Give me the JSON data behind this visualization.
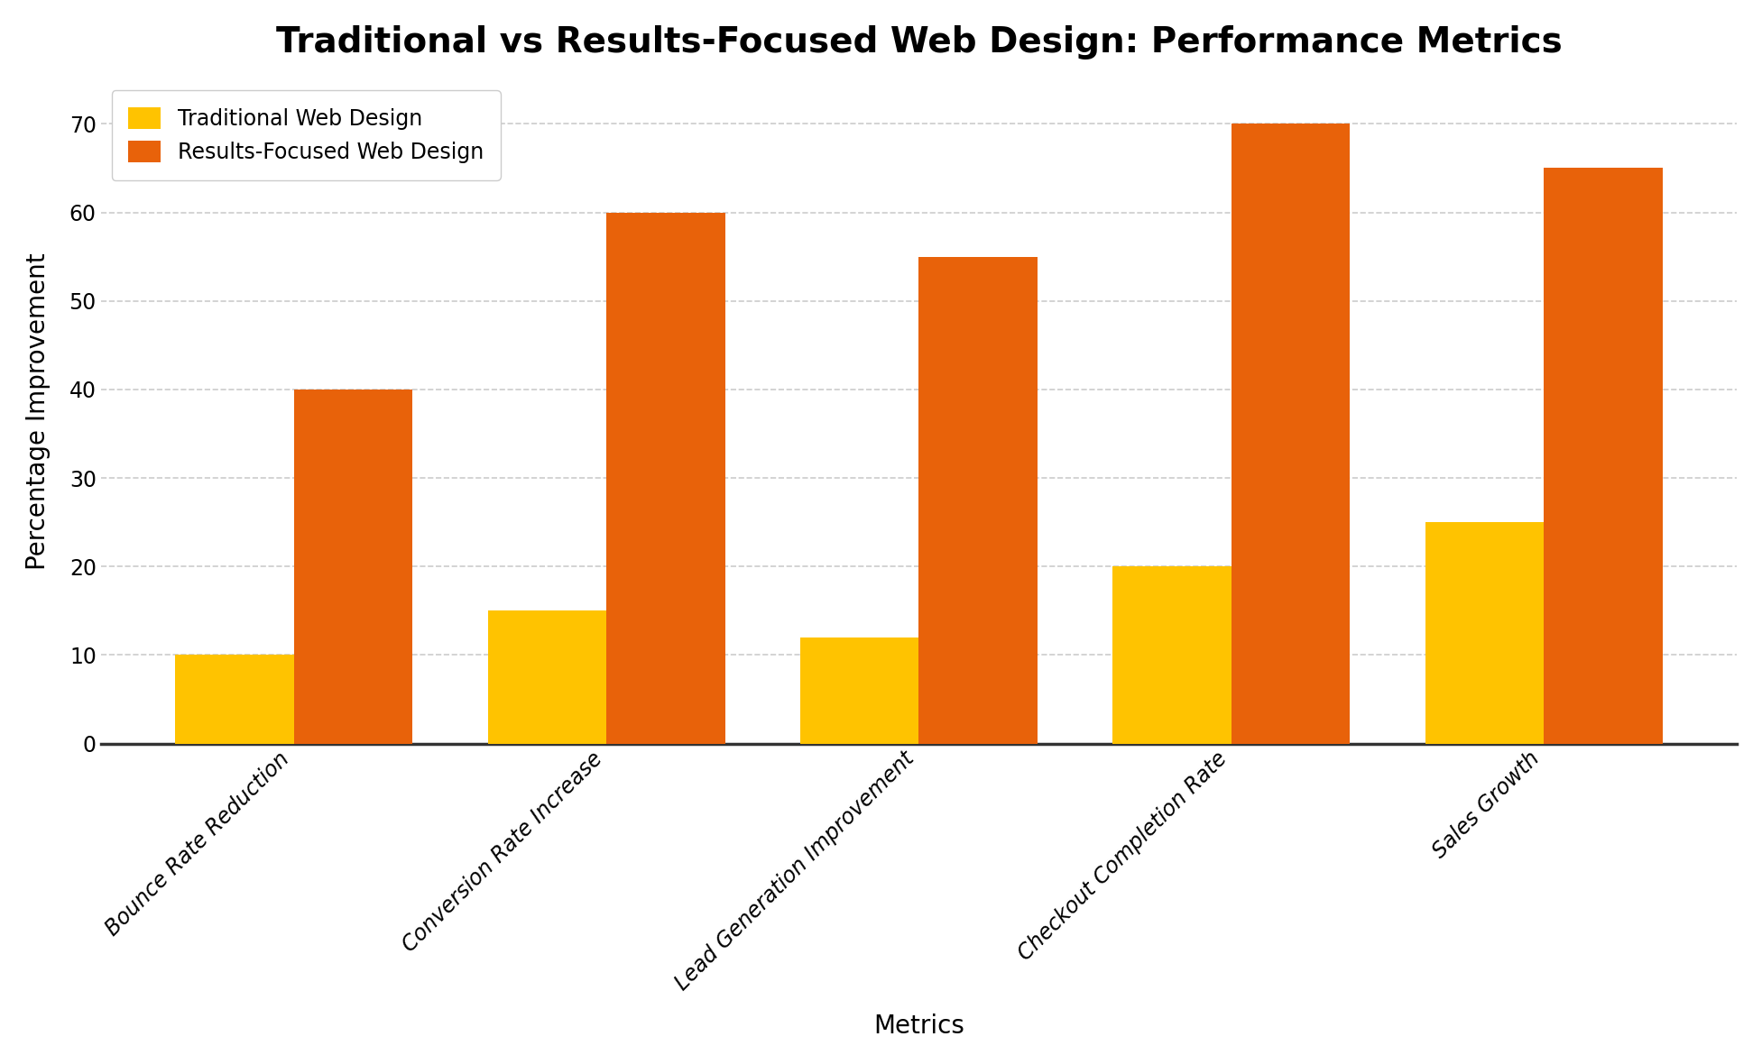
{
  "title": "Traditional vs Results-Focused Web Design: Performance Metrics",
  "xlabel": "Metrics",
  "ylabel": "Percentage Improvement",
  "categories": [
    "Bounce Rate Reduction",
    "Conversion Rate Increase",
    "Lead Generation Improvement",
    "Checkout Completion Rate",
    "Sales Growth"
  ],
  "series": [
    {
      "label": "Traditional Web Design",
      "values": [
        10,
        15,
        12,
        20,
        25
      ],
      "color": "#FFC300"
    },
    {
      "label": "Results-Focused Web Design",
      "values": [
        40,
        60,
        55,
        70,
        65
      ],
      "color": "#E8620A"
    }
  ],
  "ylim": [
    0,
    75
  ],
  "yticks": [
    0,
    10,
    20,
    30,
    40,
    50,
    60,
    70
  ],
  "background_color": "#FFFFFF",
  "grid_color": "#CCCCCC",
  "title_fontsize": 28,
  "axis_label_fontsize": 20,
  "tick_fontsize": 17,
  "legend_fontsize": 17,
  "bar_width": 0.38
}
